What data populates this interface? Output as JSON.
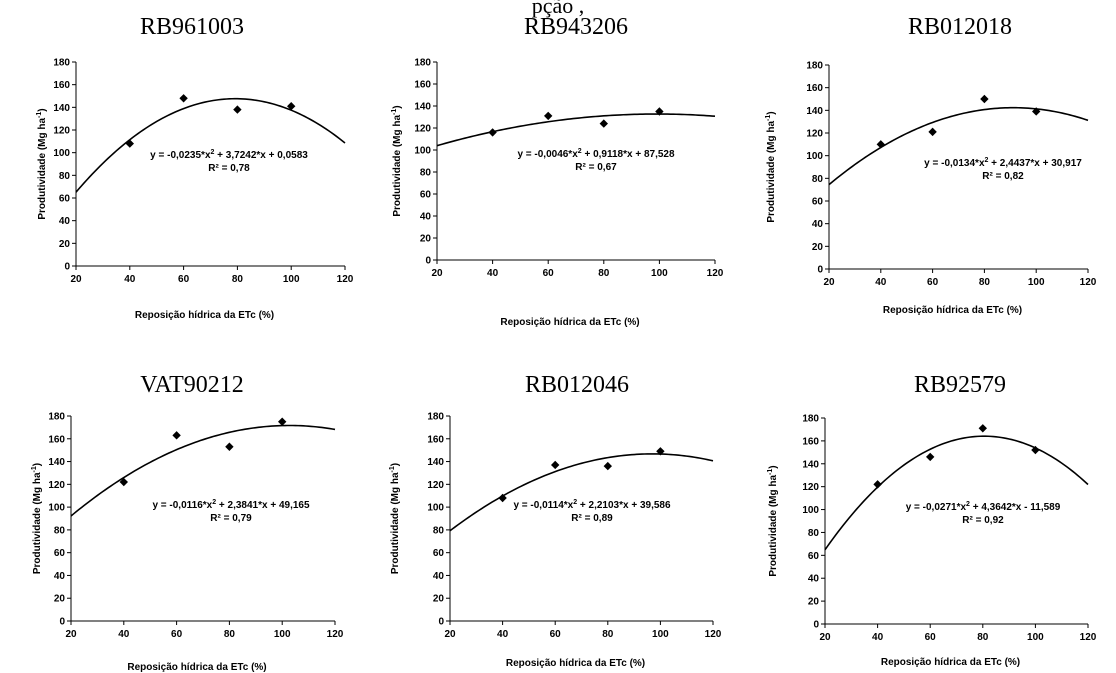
{
  "header_fragment": "pção                                                                                ,",
  "chart_data": [
    {
      "type": "scatter",
      "title": "RB961003",
      "xlabel": "Reposição hídrica da ETc (%)",
      "ylabel": "Produtividade (Mg ha",
      "ylabel_sup": "-1",
      "ylabel_end": ")",
      "xlim": [
        20,
        120
      ],
      "ylim": [
        0,
        180
      ],
      "xticks": [
        20,
        40,
        60,
        80,
        100,
        120
      ],
      "yticks": [
        0,
        20,
        40,
        60,
        80,
        100,
        120,
        140,
        160,
        180
      ],
      "points": [
        {
          "x": 40,
          "y": 108
        },
        {
          "x": 60,
          "y": 148
        },
        {
          "x": 80,
          "y": 138
        },
        {
          "x": 100,
          "y": 141
        }
      ],
      "fit": {
        "a": -0.0235,
        "b": 3.7242,
        "c": 0.0583
      },
      "equation_parts": [
        "y = -0,0235*x",
        "2",
        " + 3,7242*x + 0,0583"
      ],
      "r2_label": "R² = 0,78"
    },
    {
      "type": "scatter",
      "title": "RB943206",
      "xlabel": "Reposição hídrica da ETc (%)",
      "ylabel": "Produtividade (Mg ha",
      "ylabel_sup": "-1",
      "ylabel_end": ")",
      "xlim": [
        20,
        120
      ],
      "ylim": [
        0,
        180
      ],
      "xticks": [
        20,
        40,
        60,
        80,
        100,
        120
      ],
      "yticks": [
        0,
        20,
        40,
        60,
        80,
        100,
        120,
        140,
        160,
        180
      ],
      "points": [
        {
          "x": 40,
          "y": 116
        },
        {
          "x": 60,
          "y": 131
        },
        {
          "x": 80,
          "y": 124
        },
        {
          "x": 100,
          "y": 135
        }
      ],
      "fit": {
        "a": -0.0046,
        "b": 0.9118,
        "c": 87.528
      },
      "equation_parts": [
        "y = -0,0046*x",
        "2",
        " + 0,9118*x + 87,528"
      ],
      "r2_label": "R² = 0,67"
    },
    {
      "type": "scatter",
      "title": "RB012018",
      "xlabel": "Reposição hídrica da ETc (%)",
      "ylabel": "Produtividade (Mg ha",
      "ylabel_sup": "-1",
      "ylabel_end": ")",
      "xlim": [
        20,
        120
      ],
      "ylim": [
        0,
        180
      ],
      "xticks": [
        20,
        40,
        60,
        80,
        100,
        120
      ],
      "yticks": [
        0,
        20,
        40,
        60,
        80,
        100,
        120,
        140,
        160,
        180
      ],
      "points": [
        {
          "x": 40,
          "y": 110
        },
        {
          "x": 60,
          "y": 121
        },
        {
          "x": 80,
          "y": 150
        },
        {
          "x": 100,
          "y": 139
        }
      ],
      "fit": {
        "a": -0.0134,
        "b": 2.4437,
        "c": 30.917
      },
      "equation_parts": [
        "y = -0,0134*x",
        "2",
        " + 2,4437*x + 30,917"
      ],
      "r2_label": "R² = 0,82"
    },
    {
      "type": "scatter",
      "title": "VAT90212",
      "xlabel": "Reposição hídrica da ETc (%)",
      "ylabel": "Produtividade (Mg ha",
      "ylabel_sup": "-1",
      "ylabel_end": ")",
      "xlim": [
        20,
        120
      ],
      "ylim": [
        0,
        180
      ],
      "xticks": [
        20,
        40,
        60,
        80,
        100,
        120
      ],
      "yticks": [
        0,
        20,
        40,
        60,
        80,
        100,
        120,
        140,
        160,
        180
      ],
      "points": [
        {
          "x": 40,
          "y": 122
        },
        {
          "x": 60,
          "y": 163
        },
        {
          "x": 80,
          "y": 153
        },
        {
          "x": 100,
          "y": 175
        }
      ],
      "fit": {
        "a": -0.0116,
        "b": 2.3841,
        "c": 49.165
      },
      "equation_parts": [
        "y = -0,0116*x",
        "2",
        " + 2,3841*x + 49,165"
      ],
      "r2_label": "R² = 0,79"
    },
    {
      "type": "scatter",
      "title": "RB012046",
      "xlabel": "Reposição hídrica da ETc (%)",
      "ylabel": "Produtividade (Mg ha",
      "ylabel_sup": "-1",
      "ylabel_end": ")",
      "xlim": [
        20,
        120
      ],
      "ylim": [
        0,
        180
      ],
      "xticks": [
        20,
        40,
        60,
        80,
        100,
        120
      ],
      "yticks": [
        0,
        20,
        40,
        60,
        80,
        100,
        120,
        140,
        160,
        180
      ],
      "points": [
        {
          "x": 40,
          "y": 108
        },
        {
          "x": 60,
          "y": 137
        },
        {
          "x": 80,
          "y": 136
        },
        {
          "x": 100,
          "y": 149
        }
      ],
      "fit": {
        "a": -0.0114,
        "b": 2.2103,
        "c": 39.586
      },
      "equation_parts": [
        "y = -0,0114*x",
        "2",
        " + 2,2103*x + 39,586"
      ],
      "r2_label": "R² = 0,89"
    },
    {
      "type": "scatter",
      "title": "RB92579",
      "xlabel": "Reposição hídrica da ETc (%)",
      "ylabel": "Produtividade (Mg ha",
      "ylabel_sup": "-1",
      "ylabel_end": ")",
      "xlim": [
        20,
        120
      ],
      "ylim": [
        0,
        180
      ],
      "xticks": [
        20,
        40,
        60,
        80,
        100,
        120
      ],
      "yticks": [
        0,
        20,
        40,
        60,
        80,
        100,
        120,
        140,
        160,
        180
      ],
      "points": [
        {
          "x": 40,
          "y": 122
        },
        {
          "x": 60,
          "y": 146
        },
        {
          "x": 80,
          "y": 171
        },
        {
          "x": 100,
          "y": 152
        }
      ],
      "fit": {
        "a": -0.0271,
        "b": 4.3642,
        "c": -11.589
      },
      "equation_parts": [
        "y = -0,0271*x",
        "2",
        " + 4,3642*x - 11,589"
      ],
      "r2_label": "R² = 0,92"
    }
  ]
}
